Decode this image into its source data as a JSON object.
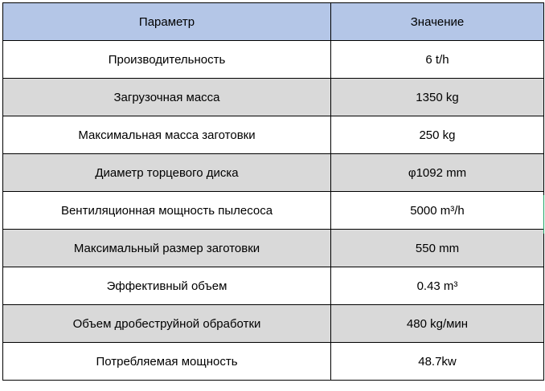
{
  "table": {
    "headers": {
      "param": "Параметр",
      "value": "Значение"
    },
    "rows": [
      {
        "param": "Производительность",
        "value": "6 t/h"
      },
      {
        "param": "Загрузочная масса",
        "value": "1350 kg"
      },
      {
        "param": "Максимальная масса заготовки",
        "value": "250 kg"
      },
      {
        "param": "Диаметр торцевого диска",
        "value": "φ1092 mm"
      },
      {
        "param": "Вентиляционная мощность пылесоса",
        "value": "5000 m³/h"
      },
      {
        "param": "Максимальный размер заготовки",
        "value": "550 mm"
      },
      {
        "param": "Эффективный объем",
        "value": "0.43 m³"
      },
      {
        "param": "Объем дробеструйной обработки",
        "value": "480 kg/мин"
      },
      {
        "param": "Потребляемая мощность",
        "value": "48.7kw"
      }
    ]
  },
  "colors": {
    "header_bg": "#b4c6e7",
    "shaded_row_bg": "#d9d9d9",
    "plain_row_bg": "#ffffff",
    "border": "#000000",
    "selection_edge": "#21a366"
  }
}
